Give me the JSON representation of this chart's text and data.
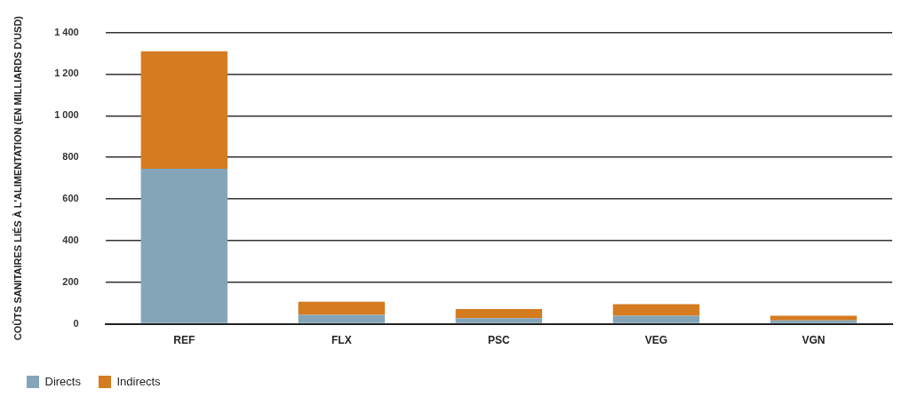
{
  "chart_data": {
    "type": "bar",
    "stacked": true,
    "ylabel": "COÛTS SANITAIRES LIÉS À L'ALIMENTATION (EN MILLIARDS D'USD)",
    "categories": [
      "REF",
      "FLX",
      "PSC",
      "VEG",
      "VGN"
    ],
    "series": [
      {
        "name": "Directs",
        "color": "#84a5b8",
        "values": [
          745,
          43,
          27,
          39,
          16
        ]
      },
      {
        "name": "Indirects",
        "color": "#d57b20",
        "values": [
          565,
          63,
          44,
          55,
          23
        ]
      }
    ],
    "ylim": [
      0,
      1400
    ],
    "yticks": [
      0,
      200,
      400,
      600,
      800,
      {
        "value": 1000,
        "label": "1 000"
      },
      {
        "value": 1200,
        "label": "1 200"
      },
      {
        "value": 1400,
        "label": "1 400"
      }
    ],
    "grid": "y",
    "legend": "bottom left"
  }
}
